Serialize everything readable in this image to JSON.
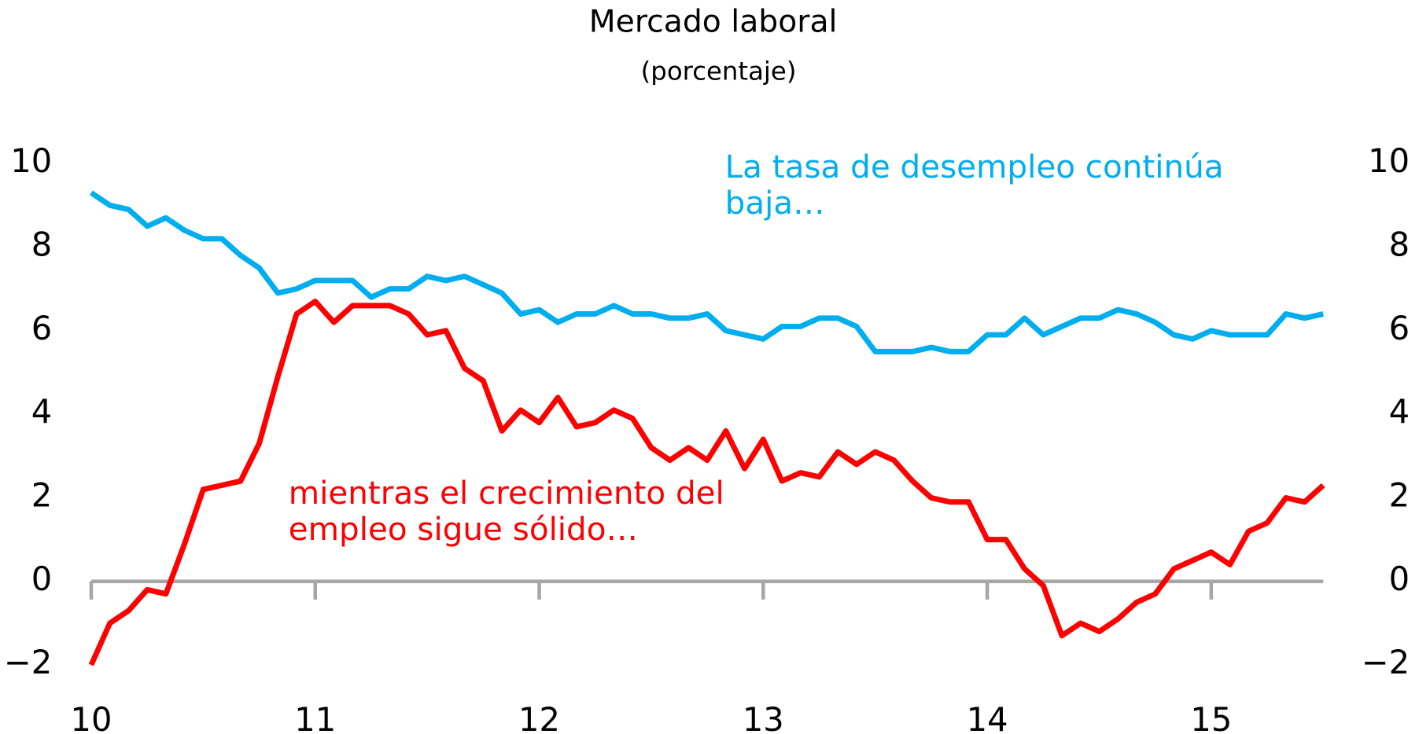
{
  "chart_data": {
    "type": "line",
    "title": "Mercado laboral",
    "subtitle": "(porcentaje)",
    "x": [
      10,
      10.0833,
      10.1667,
      10.25,
      10.3333,
      10.4167,
      10.5,
      10.5833,
      10.6667,
      10.75,
      10.8333,
      10.9167,
      11,
      11.0833,
      11.1667,
      11.25,
      11.3333,
      11.4167,
      11.5,
      11.5833,
      11.6667,
      11.75,
      11.8333,
      11.9167,
      12,
      12.0833,
      12.1667,
      12.25,
      12.3333,
      12.4167,
      12.5,
      12.5833,
      12.6667,
      12.75,
      12.8333,
      12.9167,
      13,
      13.0833,
      13.1667,
      13.25,
      13.3333,
      13.4167,
      13.5,
      13.5833,
      13.6667,
      13.75,
      13.8333,
      13.9167,
      14,
      14.0833,
      14.1667,
      14.25,
      14.3333,
      14.4167,
      14.5,
      14.5833,
      14.6667,
      14.75,
      14.8333,
      14.9167,
      15,
      15.0833,
      15.1667,
      15.25,
      15.3333,
      15.4167,
      15.5
    ],
    "series": [
      {
        "color": "#00aeef",
        "axis": "y2",
        "values": [
          9.3,
          9.0,
          8.9,
          8.5,
          8.7,
          8.4,
          8.2,
          8.2,
          7.8,
          7.5,
          6.9,
          7.0,
          7.2,
          7.2,
          7.2,
          6.8,
          7.0,
          7.0,
          7.3,
          7.2,
          7.3,
          7.1,
          6.9,
          6.4,
          6.5,
          6.2,
          6.4,
          6.4,
          6.6,
          6.4,
          6.4,
          6.3,
          6.3,
          6.4,
          6.0,
          5.9,
          5.8,
          6.1,
          6.1,
          6.3,
          6.3,
          6.1,
          5.5,
          5.5,
          5.5,
          5.6,
          5.5,
          5.5,
          5.9,
          5.9,
          6.3,
          5.9,
          6.1,
          6.3,
          6.3,
          6.5,
          6.4,
          6.2,
          5.9,
          5.8,
          6.0,
          5.9,
          5.9,
          5.9,
          6.4,
          6.3,
          6.4
        ]
      },
      {
        "color": "#ff0000",
        "values": [
          -2.0,
          -1.0,
          -0.7,
          -0.2,
          -0.3,
          0.9,
          2.2,
          2.3,
          2.4,
          3.3,
          4.9,
          6.4,
          6.7,
          6.2,
          6.6,
          6.6,
          6.6,
          6.4,
          5.9,
          6.0,
          5.1,
          4.8,
          3.6,
          4.1,
          3.8,
          4.4,
          3.7,
          3.8,
          4.1,
          3.9,
          3.2,
          2.9,
          3.2,
          2.9,
          3.6,
          2.7,
          3.4,
          2.4,
          2.6,
          2.5,
          3.1,
          2.8,
          3.1,
          2.9,
          2.4,
          2.0,
          1.9,
          1.9,
          1.0,
          1.0,
          0.3,
          -0.1,
          -1.3,
          -1.0,
          -1.2,
          -0.9,
          -0.5,
          -0.3,
          0.3,
          0.5,
          0.7,
          0.4,
          1.2,
          1.4,
          2.0,
          1.9,
          2.3
        ]
      }
    ],
    "annotations": [
      {
        "color": "#00aeef",
        "lines": [
          "La tasa de desempleo continúa",
          "baja…"
        ]
      },
      {
        "color": "#ff0000",
        "lines": [
          "mientras el crecimiento del",
          "empleo sigue sólido…"
        ]
      }
    ],
    "xlim": [
      10,
      15.5
    ],
    "xticks": [
      10,
      11,
      12,
      13,
      14,
      15
    ],
    "ylim": [
      -2.6,
      10.6
    ],
    "yticks": [
      {
        "value": -2,
        "label": "−2"
      },
      0,
      2,
      4,
      6,
      8,
      10
    ],
    "y2lim": [
      -2.6,
      10.6
    ],
    "y2ticks": [
      {
        "value": -2,
        "label": "−2"
      },
      0,
      2,
      4,
      6,
      8,
      10
    ]
  }
}
